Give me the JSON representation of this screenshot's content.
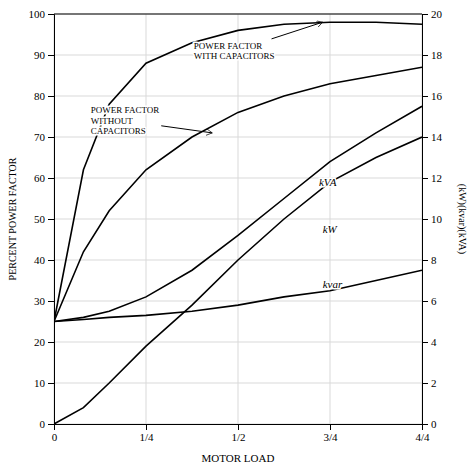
{
  "chart_data": {
    "type": "line",
    "x": [
      0,
      0.08,
      0.15,
      0.25,
      0.375,
      0.5,
      0.625,
      0.75,
      0.875,
      1.0
    ],
    "xlabel": "MOTOR LOAD",
    "ylabel": "PERCENT POWER FACTOR",
    "y2label": "(kW)(kvar)(kVA)",
    "xlim": [
      0,
      1.0
    ],
    "ylim": [
      0,
      100
    ],
    "y2lim": [
      0,
      20
    ],
    "xticks": [
      0,
      {
        "value": 0.25,
        "label": "1/4"
      },
      {
        "value": 0.5,
        "label": "1/2"
      },
      {
        "value": 0.75,
        "label": "3/4"
      },
      {
        "value": 1.0,
        "label": "4/4"
      }
    ],
    "yticks": [
      0,
      10,
      20,
      30,
      40,
      50,
      60,
      70,
      80,
      90,
      100
    ],
    "y2ticks": [
      0,
      2,
      4,
      6,
      8,
      10,
      12,
      14,
      16,
      18,
      20
    ],
    "grid": true,
    "series": [
      {
        "color": "#000000",
        "values": [
          25,
          62,
          78,
          88,
          93,
          96,
          97.5,
          98,
          98,
          97.5
        ]
      },
      {
        "color": "#000000",
        "values": [
          25,
          42,
          52,
          62,
          70,
          76,
          80,
          83,
          85,
          87
        ]
      },
      {
        "color": "#000000",
        "axis": "y2",
        "values": [
          5.0,
          5.2,
          5.5,
          6.2,
          7.5,
          9.2,
          11.0,
          12.8,
          14.2,
          15.5
        ]
      },
      {
        "color": "#000000",
        "axis": "y2",
        "values": [
          0.0,
          0.8,
          2.0,
          3.8,
          5.8,
          8.0,
          10.0,
          11.8,
          13.0,
          14.0
        ]
      },
      {
        "color": "#000000",
        "axis": "y2",
        "values": [
          5.0,
          5.1,
          5.2,
          5.3,
          5.5,
          5.8,
          6.2,
          6.5,
          7.0,
          7.5
        ]
      }
    ],
    "annotations": [
      {
        "text": "POWER FACTOR\nWITH CAPACITORS",
        "x": 0.73,
        "y": 98,
        "text_x": 0.38,
        "text_y": 91,
        "axis": "y"
      },
      {
        "text": "POWER FACTOR\nWITHOUT\nCAPACITORS",
        "x": 0.43,
        "y": 71,
        "text_x": 0.1,
        "text_y": 74,
        "axis": "y"
      },
      {
        "text": "kVA",
        "text_x": 0.72,
        "text_y": 11.8,
        "axis": "y2"
      },
      {
        "text": "kW",
        "text_x": 0.73,
        "text_y": 9.5,
        "axis": "y2"
      },
      {
        "text": "kvar",
        "text_x": 0.73,
        "text_y": 6.8,
        "axis": "y2"
      }
    ]
  }
}
